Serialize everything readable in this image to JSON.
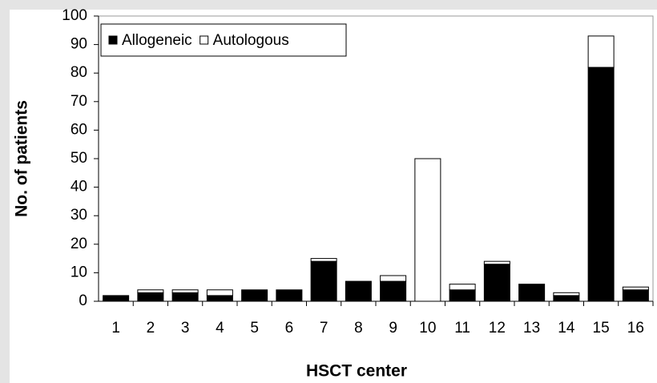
{
  "chart_data": {
    "type": "stacked_bar",
    "x_label": "HSCT center",
    "y_label": "No. of patients",
    "categories": [
      "1",
      "2",
      "3",
      "4",
      "5",
      "6",
      "7",
      "8",
      "9",
      "10",
      "11",
      "12",
      "13",
      "14",
      "15",
      "16"
    ],
    "series": [
      {
        "name": "Allogeneic",
        "color": "#000000",
        "values": [
          2,
          3,
          3,
          2,
          4,
          4,
          14,
          7,
          7,
          0,
          4,
          13,
          6,
          2,
          82,
          4
        ]
      },
      {
        "name": "Autologous",
        "color": "#ffffff",
        "values": [
          0,
          1,
          1,
          2,
          0,
          0,
          1,
          0,
          2,
          50,
          2,
          1,
          0,
          1,
          11,
          1
        ]
      }
    ],
    "ylim": [
      0,
      100
    ],
    "yticks": [
      0,
      10,
      20,
      30,
      40,
      50,
      60,
      70,
      80,
      90,
      100
    ],
    "grid": false,
    "legend": "upper left"
  }
}
